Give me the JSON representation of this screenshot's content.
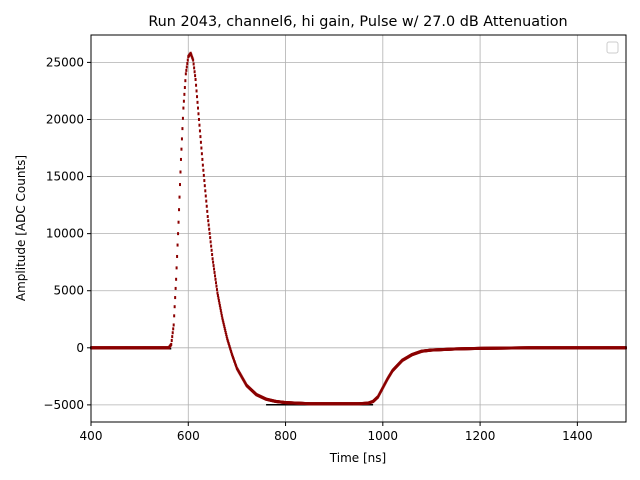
{
  "chart_data": {
    "type": "scatter",
    "title": "Run 2043, channel6, hi gain, Pulse w/ 27.0 dB Attenuation",
    "xlabel": "Time [ns]",
    "ylabel": "Amplitude [ADC Counts]",
    "xlim": [
      400,
      1500
    ],
    "ylim": [
      -6500,
      27400
    ],
    "xticks": [
      400,
      600,
      800,
      1000,
      1200,
      1400
    ],
    "xtick_labels": [
      "400",
      "600",
      "800",
      "1000",
      "1200",
      "1400"
    ],
    "yticks": [
      -5000,
      0,
      5000,
      10000,
      15000,
      20000,
      25000
    ],
    "ytick_labels": [
      "−5000",
      "0",
      "5000",
      "10000",
      "15000",
      "20000",
      "25000"
    ],
    "grid": true,
    "legend": "top-right, empty",
    "colors": {
      "points": "#8b0000",
      "baseline": "#000000"
    },
    "series": [
      {
        "x": [
          400,
          500,
          560,
          565,
          570,
          575,
          580,
          585,
          590,
          595,
          600,
          605,
          610,
          615,
          620,
          630,
          640,
          650,
          660,
          670,
          680,
          690,
          700,
          720,
          740,
          760,
          780,
          800,
          850,
          900,
          950,
          970,
          980,
          990,
          1000,
          1010,
          1020,
          1040,
          1060,
          1080,
          1100,
          1150,
          1200,
          1300,
          1400,
          1500
        ],
        "y": [
          0,
          0,
          0,
          300,
          2000,
          6000,
          11000,
          16500,
          21000,
          24000,
          25500,
          25800,
          25200,
          23500,
          21000,
          16000,
          11500,
          7800,
          4800,
          2600,
          800,
          -600,
          -1800,
          -3300,
          -4100,
          -4500,
          -4700,
          -4800,
          -4900,
          -4900,
          -4900,
          -4850,
          -4700,
          -4300,
          -3500,
          -2700,
          -2000,
          -1100,
          -600,
          -300,
          -200,
          -100,
          -50,
          0,
          0,
          0
        ]
      }
    ]
  }
}
